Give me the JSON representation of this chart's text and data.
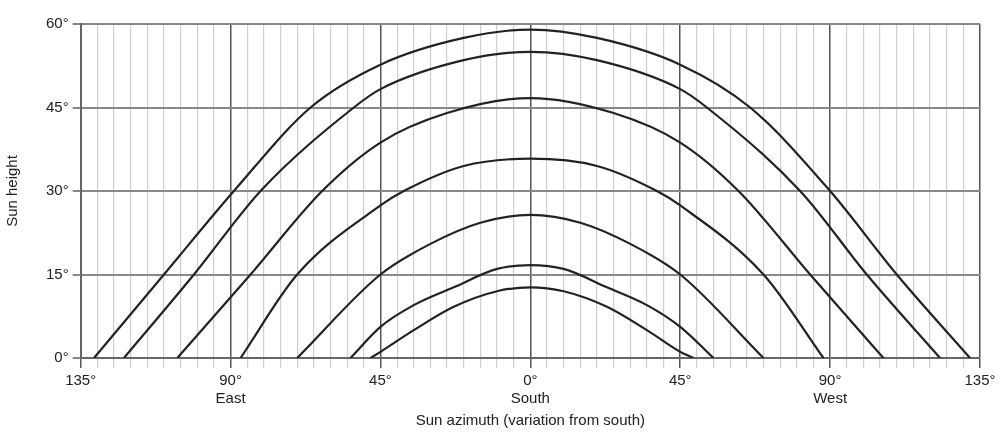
{
  "chart_data": {
    "type": "line",
    "xlabel": "Sun azimuth (variation from south)",
    "ylabel": "Sun height",
    "xlim": [
      -135,
      135
    ],
    "ylim": [
      0,
      60
    ],
    "xticks": [
      {
        "value": -135,
        "label": "135°"
      },
      {
        "value": -130,
        "label": null
      },
      {
        "value": -125,
        "label": null
      },
      {
        "value": -120,
        "label": null
      },
      {
        "value": -115,
        "label": null
      },
      {
        "value": -110,
        "label": null
      },
      {
        "value": -105,
        "label": null
      },
      {
        "value": -100,
        "label": null
      },
      {
        "value": -95,
        "label": null
      },
      {
        "value": -90,
        "label": "90°\nEast"
      },
      {
        "value": -85,
        "label": null
      },
      {
        "value": -80,
        "label": null
      },
      {
        "value": -75,
        "label": null
      },
      {
        "value": -70,
        "label": null
      },
      {
        "value": -65,
        "label": null
      },
      {
        "value": -60,
        "label": null
      },
      {
        "value": -55,
        "label": null
      },
      {
        "value": -50,
        "label": null
      },
      {
        "value": -45,
        "label": "45°"
      },
      {
        "value": -40,
        "label": null
      },
      {
        "value": -35,
        "label": null
      },
      {
        "value": -30,
        "label": null
      },
      {
        "value": -25,
        "label": null
      },
      {
        "value": -20,
        "label": null
      },
      {
        "value": -15,
        "label": null
      },
      {
        "value": -10,
        "label": null
      },
      {
        "value": -5,
        "label": null
      },
      {
        "value": 0,
        "label": "0°\nSouth"
      },
      {
        "value": 5,
        "label": null
      },
      {
        "value": 10,
        "label": null
      },
      {
        "value": 15,
        "label": null
      },
      {
        "value": 20,
        "label": null
      },
      {
        "value": 25,
        "label": null
      },
      {
        "value": 30,
        "label": null
      },
      {
        "value": 35,
        "label": null
      },
      {
        "value": 40,
        "label": null
      },
      {
        "value": 45,
        "label": "45°"
      },
      {
        "value": 50,
        "label": null
      },
      {
        "value": 55,
        "label": null
      },
      {
        "value": 60,
        "label": null
      },
      {
        "value": 65,
        "label": null
      },
      {
        "value": 70,
        "label": null
      },
      {
        "value": 75,
        "label": null
      },
      {
        "value": 80,
        "label": null
      },
      {
        "value": 85,
        "label": null
      },
      {
        "value": 90,
        "label": "90°\nWest"
      },
      {
        "value": 95,
        "label": null
      },
      {
        "value": 100,
        "label": null
      },
      {
        "value": 105,
        "label": null
      },
      {
        "value": 110,
        "label": null
      },
      {
        "value": 115,
        "label": null
      },
      {
        "value": 120,
        "label": null
      },
      {
        "value": 125,
        "label": null
      },
      {
        "value": 130,
        "label": null
      },
      {
        "value": 135,
        "label": "135°"
      }
    ],
    "yticks": [
      {
        "value": 0,
        "label": "0°"
      },
      {
        "value": 15,
        "label": "15°"
      },
      {
        "value": 30,
        "label": "30°"
      },
      {
        "value": 45,
        "label": "45°"
      },
      {
        "value": 60,
        "label": "60°"
      }
    ],
    "grid": true,
    "legend": false,
    "series": [
      {
        "color": "#222222",
        "x": [
          -131,
          -110,
          -89,
          -66,
          -45,
          -20,
          0,
          20,
          45,
          66,
          90,
          110,
          132
        ],
        "values": [
          0,
          15,
          30,
          45,
          52.7,
          57.5,
          59,
          57.5,
          52.7,
          45,
          30,
          15,
          0
        ]
      },
      {
        "color": "#222222",
        "x": [
          -122,
          -101,
          -81,
          -53,
          -45,
          -20,
          0,
          20,
          45,
          53,
          81,
          101,
          123
        ],
        "values": [
          0,
          15,
          30,
          45,
          48.3,
          53.5,
          55,
          53.5,
          48.3,
          45,
          30,
          15,
          0
        ]
      },
      {
        "color": "#222222",
        "x": [
          -106,
          -84,
          -62.5,
          -45,
          -25,
          0,
          25,
          45,
          62.5,
          84,
          106
        ],
        "values": [
          0,
          15,
          30,
          38.7,
          44,
          46.7,
          44,
          38.7,
          30,
          15,
          0
        ]
      },
      {
        "color": "#222222",
        "x": [
          -87,
          -70,
          -45,
          -38,
          -20,
          0,
          20,
          38,
          45,
          70,
          88
        ],
        "values": [
          0,
          15,
          27.4,
          30,
          34.5,
          35.8,
          34.5,
          30,
          27.4,
          15,
          0
        ]
      },
      {
        "color": "#222222",
        "x": [
          -70,
          -45,
          -30,
          -15,
          0,
          15,
          30,
          45,
          70
        ],
        "values": [
          0,
          15,
          20.5,
          24.3,
          25.7,
          24.3,
          20.5,
          15,
          0
        ]
      },
      {
        "color": "#222222",
        "x": [
          -54,
          -45,
          -35,
          -23,
          -10,
          0,
          10,
          23,
          35,
          45,
          55
        ],
        "values": [
          0,
          5.6,
          9.5,
          12.7,
          16,
          16.7,
          16,
          12.7,
          9.5,
          5.6,
          0
        ]
      },
      {
        "color": "#222222",
        "x": [
          -48,
          -45,
          -35,
          -23,
          -10,
          0,
          10,
          23,
          35,
          45,
          49
        ],
        "values": [
          0,
          1.1,
          5,
          9.2,
          12,
          12.7,
          12,
          9.2,
          5,
          1.1,
          0
        ]
      }
    ]
  }
}
